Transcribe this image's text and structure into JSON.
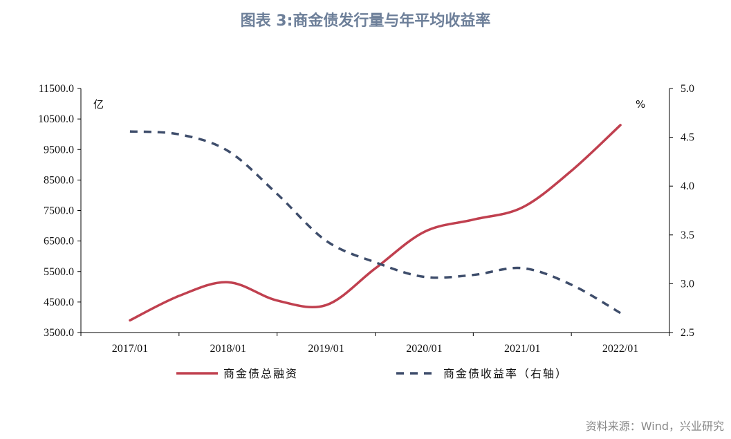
{
  "title": "图表 3:商金债发行量与年平均收益率",
  "source": "资料来源：Wind，兴业研究",
  "chart_data": {
    "type": "line",
    "categories": [
      "2017/01",
      "2018/01",
      "2019/01",
      "2020/01",
      "2021/01",
      "2022/01"
    ],
    "left_axis": {
      "unit": "亿",
      "ylim": [
        3500,
        11500
      ],
      "ticks": [
        "3500.0",
        "4500.0",
        "5500.0",
        "6500.0",
        "7500.0",
        "8500.0",
        "9500.0",
        "10500.0",
        "11500.0"
      ]
    },
    "right_axis": {
      "unit": "%",
      "ylim": [
        2.5,
        5.0
      ],
      "ticks": [
        "2.5",
        "3.0",
        "3.5",
        "4.0",
        "4.5",
        "5.0"
      ]
    },
    "series": [
      {
        "name": "商金债总融资",
        "axis": "left",
        "color": "#c0404f",
        "style": "solid",
        "x": [
          "2017/01",
          "2017/07",
          "2018/01",
          "2018/07",
          "2019/01",
          "2019/07",
          "2020/01",
          "2020/07",
          "2021/01",
          "2021/07",
          "2022/01"
        ],
        "values": [
          3900,
          4700,
          5150,
          4550,
          4400,
          5600,
          6800,
          7200,
          7600,
          8800,
          10300
        ]
      },
      {
        "name": "商金债收益率（右轴）",
        "axis": "right",
        "color": "#3e4d6b",
        "style": "dashed",
        "x": [
          "2017/01",
          "2017/07",
          "2018/01",
          "2018/07",
          "2019/01",
          "2019/07",
          "2020/01",
          "2020/07",
          "2021/01",
          "2021/07",
          "2022/01"
        ],
        "values": [
          4.56,
          4.53,
          4.36,
          3.92,
          3.44,
          3.22,
          3.07,
          3.09,
          3.16,
          2.99,
          2.7
        ]
      }
    ],
    "grid": false,
    "legend_position": "bottom"
  }
}
